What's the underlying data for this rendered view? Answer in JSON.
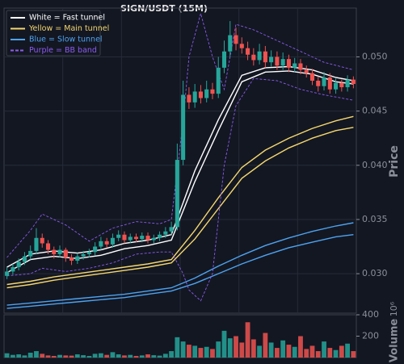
{
  "chart_data": {
    "type": "candlestick",
    "title": "SIGN/USDT (15M)",
    "y_label": "Price",
    "volume_label": "Volume",
    "volume_scale": "10⁶",
    "ylim": [
      0.02636,
      0.0545
    ],
    "yticks": [
      {
        "value": 0.03,
        "label": "0.030"
      },
      {
        "value": 0.035,
        "label": "0.035"
      },
      {
        "value": 0.04,
        "label": "0.040"
      },
      {
        "value": 0.045,
        "label": "0.045"
      },
      {
        "value": 0.05,
        "label": "0.050"
      }
    ],
    "volume_ylim": [
      0,
      415
    ],
    "volume_yticks": [
      200,
      400
    ],
    "grid": true,
    "legend": "upper left",
    "up_color": "#26a69a",
    "down_color": "#ef5350",
    "candles": {
      "open": [
        0.0298,
        0.0302,
        0.0306,
        0.0311,
        0.0316,
        0.0321,
        0.0333,
        0.0328,
        0.0322,
        0.0318,
        0.0322,
        0.0315,
        0.0312,
        0.0316,
        0.0318,
        0.032,
        0.0325,
        0.033,
        0.0327,
        0.0333,
        0.0336,
        0.0331,
        0.0334,
        0.0332,
        0.0335,
        0.0331,
        0.0333,
        0.0336,
        0.0339,
        0.0343,
        0.0405,
        0.0465,
        0.0458,
        0.0468,
        0.0462,
        0.047,
        0.0466,
        0.049,
        0.0505,
        0.052,
        0.0512,
        0.0508,
        0.0502,
        0.0497,
        0.0505,
        0.0495,
        0.05,
        0.0492,
        0.0498,
        0.049,
        0.0494,
        0.0488,
        0.0485,
        0.0478,
        0.0473,
        0.0481,
        0.047,
        0.0476,
        0.0472,
        0.0479
      ],
      "high": [
        0.0306,
        0.0309,
        0.0314,
        0.032,
        0.0326,
        0.0342,
        0.0337,
        0.0331,
        0.0325,
        0.0326,
        0.0324,
        0.0318,
        0.0319,
        0.0321,
        0.0323,
        0.0329,
        0.0334,
        0.0333,
        0.0337,
        0.034,
        0.0339,
        0.0337,
        0.0337,
        0.0338,
        0.0338,
        0.0336,
        0.0339,
        0.0343,
        0.0348,
        0.042,
        0.0478,
        0.0472,
        0.0475,
        0.0474,
        0.0478,
        0.0476,
        0.05,
        0.0515,
        0.0533,
        0.0527,
        0.0518,
        0.0514,
        0.0508,
        0.0512,
        0.051,
        0.0506,
        0.0505,
        0.0504,
        0.0502,
        0.0499,
        0.0498,
        0.0492,
        0.0489,
        0.0482,
        0.0486,
        0.0485,
        0.048,
        0.0479,
        0.0483,
        0.0482
      ],
      "low": [
        0.0295,
        0.0299,
        0.0303,
        0.0308,
        0.0313,
        0.0318,
        0.0324,
        0.0318,
        0.0314,
        0.0315,
        0.0311,
        0.0308,
        0.0309,
        0.0313,
        0.0315,
        0.0317,
        0.0322,
        0.0324,
        0.0324,
        0.033,
        0.0328,
        0.0328,
        0.0329,
        0.0329,
        0.0328,
        0.0328,
        0.033,
        0.0333,
        0.0336,
        0.034,
        0.04,
        0.0452,
        0.0453,
        0.0457,
        0.0458,
        0.0461,
        0.0462,
        0.0485,
        0.05,
        0.0506,
        0.0503,
        0.0497,
        0.0492,
        0.0493,
        0.049,
        0.0491,
        0.0488,
        0.0488,
        0.0486,
        0.0486,
        0.0484,
        0.0481,
        0.0474,
        0.0468,
        0.0469,
        0.0466,
        0.0466,
        0.0468,
        0.0468,
        0.0471
      ],
      "close": [
        0.0302,
        0.0306,
        0.0311,
        0.0316,
        0.0321,
        0.0333,
        0.0328,
        0.0322,
        0.0318,
        0.0322,
        0.0315,
        0.0312,
        0.0316,
        0.0318,
        0.032,
        0.0325,
        0.033,
        0.0327,
        0.0333,
        0.0336,
        0.0331,
        0.0334,
        0.0332,
        0.0335,
        0.0331,
        0.0333,
        0.0336,
        0.0339,
        0.0343,
        0.0405,
        0.0465,
        0.0458,
        0.0468,
        0.0462,
        0.047,
        0.0466,
        0.049,
        0.0505,
        0.052,
        0.0512,
        0.0508,
        0.0502,
        0.0497,
        0.0505,
        0.0495,
        0.05,
        0.0492,
        0.0498,
        0.049,
        0.0494,
        0.0488,
        0.0485,
        0.0478,
        0.0473,
        0.0481,
        0.047,
        0.0476,
        0.0472,
        0.0479,
        0.0475
      ],
      "volume": [
        40,
        25,
        30,
        20,
        45,
        60,
        35,
        20,
        15,
        25,
        20,
        18,
        30,
        22,
        15,
        35,
        40,
        25,
        50,
        30,
        20,
        25,
        15,
        20,
        30,
        22,
        18,
        35,
        60,
        190,
        150,
        120,
        110,
        90,
        100,
        80,
        150,
        250,
        180,
        200,
        140,
        330,
        170,
        110,
        230,
        140,
        90,
        160,
        120,
        100,
        200,
        80,
        110,
        60,
        150,
        90,
        70,
        110,
        130,
        60
      ]
    },
    "overlays": [
      {
        "name": "White = Fast tunnel",
        "color": "#ffffff",
        "dashed": false,
        "x": [
          0,
          4,
          8,
          12,
          16,
          20,
          24,
          28,
          32,
          36,
          40,
          44,
          48,
          52,
          56,
          59
        ],
        "upper": [
          0.0306,
          0.0318,
          0.0321,
          0.0319,
          0.0322,
          0.0328,
          0.0331,
          0.0336,
          0.0395,
          0.0442,
          0.0483,
          0.049,
          0.0491,
          0.0488,
          0.0481,
          0.0478
        ],
        "lower": [
          0.0301,
          0.0313,
          0.0316,
          0.0314,
          0.0317,
          0.0323,
          0.0326,
          0.0331,
          0.0385,
          0.0432,
          0.0477,
          0.0486,
          0.0487,
          0.0484,
          0.0477,
          0.0475
        ]
      },
      {
        "name": "Yellow = Main tunnel",
        "color": "#f5d76e",
        "dashed": false,
        "x": [
          0,
          4,
          8,
          12,
          16,
          20,
          24,
          28,
          32,
          36,
          40,
          44,
          48,
          52,
          56,
          59
        ],
        "upper": [
          0.029,
          0.0293,
          0.0297,
          0.03,
          0.0303,
          0.0306,
          0.0309,
          0.0313,
          0.034,
          0.037,
          0.0398,
          0.0414,
          0.0425,
          0.0434,
          0.0441,
          0.0445
        ],
        "lower": [
          0.0287,
          0.029,
          0.0294,
          0.0297,
          0.03,
          0.0303,
          0.0306,
          0.031,
          0.0332,
          0.036,
          0.0388,
          0.0404,
          0.0416,
          0.0425,
          0.0432,
          0.0435
        ]
      },
      {
        "name": "Blue = Slow tunnel",
        "color": "#4da3f0",
        "dashed": false,
        "x": [
          0,
          4,
          8,
          12,
          16,
          20,
          24,
          28,
          32,
          36,
          40,
          44,
          48,
          52,
          56,
          59
        ],
        "upper": [
          0.0271,
          0.0273,
          0.0275,
          0.0277,
          0.0279,
          0.0281,
          0.0284,
          0.0287,
          0.0296,
          0.0307,
          0.0317,
          0.0326,
          0.0333,
          0.0339,
          0.0344,
          0.0347
        ],
        "lower": [
          0.0268,
          0.027,
          0.0272,
          0.0274,
          0.0276,
          0.0278,
          0.0281,
          0.0284,
          0.0291,
          0.03,
          0.0309,
          0.0317,
          0.0324,
          0.0329,
          0.0334,
          0.0336
        ]
      },
      {
        "name": "Purple = BB band",
        "color": "#8c5cf0",
        "dashed": true,
        "x": [
          0,
          4,
          6,
          10,
          14,
          18,
          22,
          26,
          28,
          30,
          31,
          33,
          35,
          37,
          39,
          42,
          46,
          50,
          54,
          59
        ],
        "upper": [
          0.0315,
          0.034,
          0.0355,
          0.0345,
          0.033,
          0.0342,
          0.0348,
          0.0346,
          0.035,
          0.044,
          0.05,
          0.054,
          0.05,
          0.047,
          0.053,
          0.0525,
          0.0515,
          0.0505,
          0.0495,
          0.0488
        ],
        "lower": [
          0.0298,
          0.03,
          0.0305,
          0.0302,
          0.0305,
          0.031,
          0.0318,
          0.032,
          0.032,
          0.03,
          0.0285,
          0.0275,
          0.03,
          0.04,
          0.0455,
          0.048,
          0.0478,
          0.047,
          0.0465,
          0.046
        ]
      }
    ]
  }
}
